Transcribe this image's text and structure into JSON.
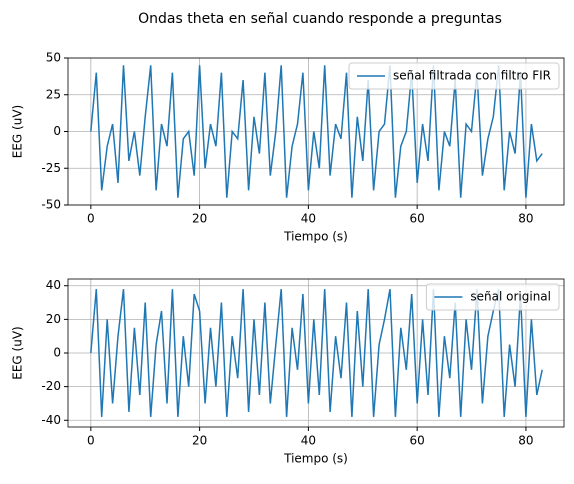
{
  "title": "Ondas theta en señal cuando responde a preguntas",
  "chart_data": [
    {
      "type": "line",
      "xlabel": "Tiempo (s)",
      "ylabel": "EEG (uV)",
      "x": [
        0,
        1,
        2,
        3,
        4,
        5,
        6,
        7,
        8,
        9,
        10,
        11,
        12,
        13,
        14,
        15,
        16,
        17,
        18,
        19,
        20,
        21,
        22,
        23,
        24,
        25,
        26,
        27,
        28,
        29,
        30,
        31,
        32,
        33,
        34,
        35,
        36,
        37,
        38,
        39,
        40,
        41,
        42,
        43,
        44,
        45,
        46,
        47,
        48,
        49,
        50,
        51,
        52,
        53,
        54,
        55,
        56,
        57,
        58,
        59,
        60,
        61,
        62,
        63,
        64,
        65,
        66,
        67,
        68,
        69,
        70,
        71,
        72,
        73,
        74,
        75,
        76,
        77,
        78,
        79,
        80,
        81,
        82,
        83
      ],
      "series": [
        {
          "name": "señal filtrada con filtro FIR",
          "color": "#1f77b4",
          "values": [
            0,
            40,
            -40,
            -10,
            5,
            -35,
            45,
            -20,
            0,
            -30,
            10,
            45,
            -40,
            5,
            -10,
            40,
            -45,
            -5,
            0,
            -30,
            45,
            -25,
            5,
            -10,
            40,
            -45,
            0,
            -5,
            35,
            -40,
            10,
            -15,
            40,
            -30,
            0,
            45,
            -45,
            -10,
            5,
            40,
            -40,
            0,
            -25,
            45,
            -30,
            5,
            -5,
            40,
            -45,
            10,
            -20,
            35,
            -40,
            0,
            5,
            45,
            -45,
            -10,
            0,
            40,
            -35,
            5,
            -20,
            45,
            -40,
            0,
            -10,
            35,
            -45,
            5,
            0,
            40,
            -30,
            -5,
            10,
            45,
            -40,
            0,
            -15,
            40,
            -45,
            5,
            -20,
            -15
          ]
        }
      ],
      "xlim": [
        -4.2,
        87
      ],
      "xticks": [
        0,
        20,
        40,
        60,
        80
      ],
      "ylim": [
        -50,
        50
      ],
      "yticks": [
        -50,
        -25,
        0,
        25,
        50
      ],
      "grid": true,
      "legend": "upper right"
    },
    {
      "type": "line",
      "xlabel": "Tiempo (s)",
      "ylabel": "EEG (uV)",
      "x": [
        0,
        1,
        2,
        3,
        4,
        5,
        6,
        7,
        8,
        9,
        10,
        11,
        12,
        13,
        14,
        15,
        16,
        17,
        18,
        19,
        20,
        21,
        22,
        23,
        24,
        25,
        26,
        27,
        28,
        29,
        30,
        31,
        32,
        33,
        34,
        35,
        36,
        37,
        38,
        39,
        40,
        41,
        42,
        43,
        44,
        45,
        46,
        47,
        48,
        49,
        50,
        51,
        52,
        53,
        54,
        55,
        56,
        57,
        58,
        59,
        60,
        61,
        62,
        63,
        64,
        65,
        66,
        67,
        68,
        69,
        70,
        71,
        72,
        73,
        74,
        75,
        76,
        77,
        78,
        79,
        80,
        81,
        82,
        83
      ],
      "series": [
        {
          "name": "señal original",
          "color": "#1f77b4",
          "values": [
            0,
            38,
            -38,
            20,
            -30,
            10,
            38,
            -35,
            15,
            -25,
            30,
            -38,
            5,
            25,
            -30,
            38,
            -38,
            10,
            -20,
            35,
            25,
            -30,
            15,
            -20,
            30,
            -38,
            10,
            -15,
            38,
            -35,
            20,
            -25,
            30,
            -30,
            5,
            38,
            -38,
            15,
            -10,
            35,
            -30,
            20,
            -25,
            38,
            -35,
            10,
            -15,
            30,
            -38,
            25,
            -20,
            38,
            -38,
            5,
            20,
            38,
            -38,
            15,
            -10,
            35,
            -30,
            20,
            -25,
            38,
            -38,
            10,
            -15,
            30,
            -38,
            20,
            -10,
            38,
            -30,
            10,
            25,
            38,
            -38,
            5,
            -20,
            35,
            -38,
            20,
            -25,
            -10
          ]
        }
      ],
      "xlim": [
        -4.2,
        87
      ],
      "xticks": [
        0,
        20,
        40,
        60,
        80
      ],
      "ylim": [
        -44,
        44
      ],
      "yticks": [
        -40,
        -20,
        0,
        20,
        40
      ],
      "grid": true,
      "legend": "upper right"
    }
  ]
}
